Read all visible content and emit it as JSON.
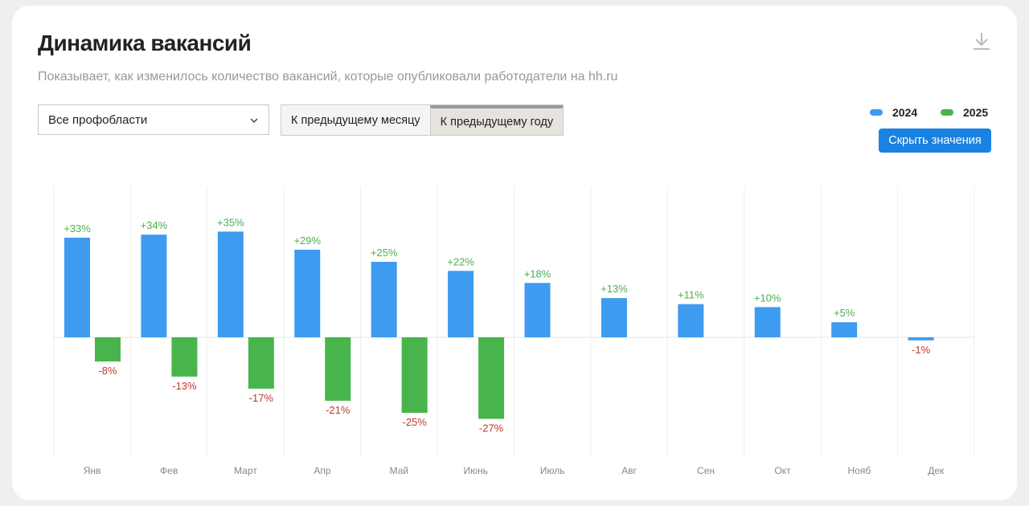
{
  "header": {
    "title": "Динамика вакансий",
    "subtitle": "Показывает, как изменилось количество вакансий, которые опубликовали работодатели на hh.ru",
    "download_icon": "download-icon"
  },
  "controls": {
    "profarea_select": "Все профобласти",
    "compare_options": [
      "К предыдущему месяцу",
      "К предыдущему году"
    ],
    "active_option": 1,
    "hide_values_label": "Скрыть значения"
  },
  "chart_data": {
    "type": "bar",
    "title": "Динамика вакансий",
    "categories": [
      "Янв",
      "Фев",
      "Март",
      "Апр",
      "Май",
      "Июнь",
      "Июль",
      "Авг",
      "Сен",
      "Окт",
      "Нояб",
      "Дек"
    ],
    "series": [
      {
        "name": "2024",
        "color": "#3d9bf0",
        "values": [
          33,
          34,
          35,
          29,
          25,
          22,
          18,
          13,
          11,
          10,
          5,
          -1
        ]
      },
      {
        "name": "2025",
        "color": "#47b54b",
        "values": [
          -8,
          -13,
          -17,
          -21,
          -25,
          -27,
          null,
          null,
          null,
          null,
          null,
          null
        ]
      }
    ],
    "unit": "%",
    "legend": "top-right",
    "positive_label_color": "#4caf50",
    "negative_label_color": "#c0392b",
    "grid": true
  }
}
